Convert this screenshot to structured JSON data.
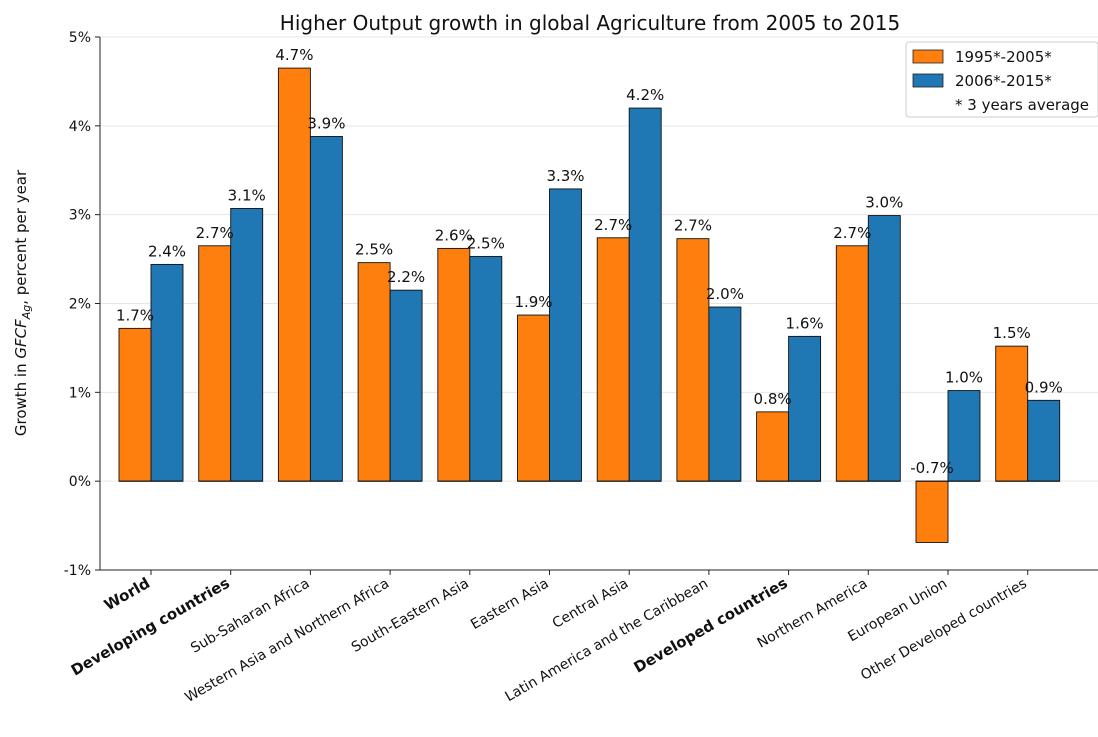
{
  "chart_data": {
    "type": "bar",
    "title": "Higher Output growth in global Agriculture from 2005 to 2015",
    "ylabel_prefix": "Growth in ",
    "ylabel_math_main": "GFCF",
    "ylabel_math_sub": "Ag",
    "ylabel_suffix": ", percent per year",
    "xlabel": "",
    "ylim": [
      -1,
      5
    ],
    "yticks": [
      -1,
      0,
      1,
      2,
      3,
      4,
      5
    ],
    "ytick_labels": [
      "-1%",
      "0%",
      "1%",
      "2%",
      "3%",
      "4%",
      "5%"
    ],
    "grid": "horizontal",
    "legend_position": "top-right",
    "legend_note": "* 3 years average",
    "categories": [
      "World",
      "Developing countries",
      "Sub-Saharan Africa",
      "Western Asia and Northern Africa",
      "South-Eastern Asia",
      "Eastern Asia",
      "Central Asia",
      "Latin America and the Caribbean",
      "Developed countries",
      "Northern America",
      "European Union",
      "Other Developed countries"
    ],
    "bold_categories": [
      "World",
      "Developing countries",
      "Developed countries"
    ],
    "series": [
      {
        "name": "1995*-2005*",
        "color": "#ff7f0e",
        "values": [
          1.72,
          2.65,
          4.65,
          2.46,
          2.62,
          1.87,
          2.74,
          2.73,
          0.78,
          2.65,
          -0.69,
          1.52
        ],
        "labels": [
          "1.7%",
          "2.7%",
          "4.7%",
          "2.5%",
          "2.6%",
          "1.9%",
          "2.7%",
          "2.7%",
          "0.8%",
          "2.7%",
          "-0.7%",
          "1.5%"
        ]
      },
      {
        "name": "2006*-2015*",
        "color": "#1f77b4",
        "values": [
          2.44,
          3.07,
          3.88,
          2.15,
          2.53,
          3.29,
          4.2,
          1.96,
          1.63,
          2.99,
          1.02,
          0.91
        ],
        "labels": [
          "2.4%",
          "3.1%",
          "3.9%",
          "2.2%",
          "2.5%",
          "3.3%",
          "4.2%",
          "2.0%",
          "1.6%",
          "3.0%",
          "1.0%",
          "0.9%"
        ]
      }
    ]
  }
}
